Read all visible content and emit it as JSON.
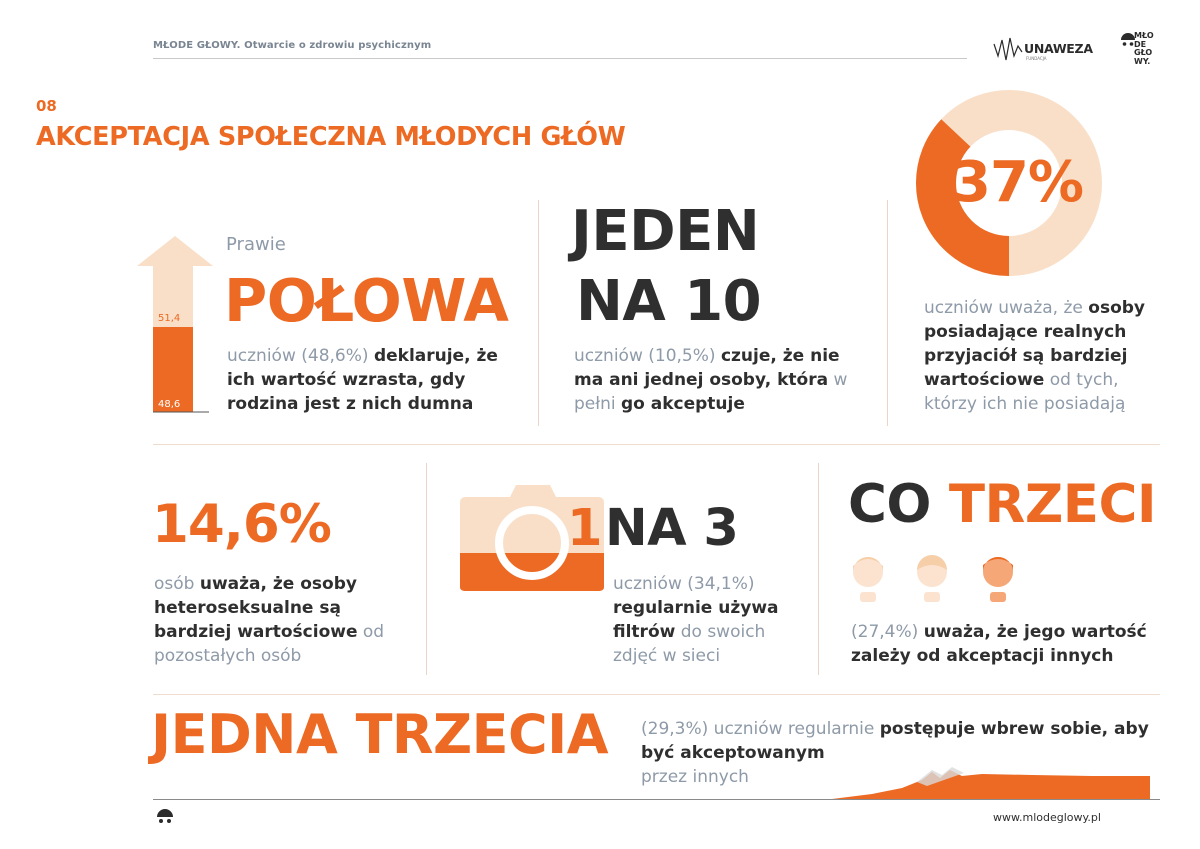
{
  "header": {
    "title": "MŁODE GŁOWY. Otwarcie o zdrowiu psychicznym",
    "unaweza_logo": "UNAWEZA",
    "unaweza_sub": "FUNDACJA",
    "mg_logo_lines": [
      "MŁO",
      "DE",
      "GŁO",
      "WY."
    ]
  },
  "section": {
    "number": "08",
    "title": "AKCEPTACJA SPOŁECZNA MŁODYCH GŁÓW"
  },
  "block1": {
    "pre": "Prawie",
    "headline": "POŁOWA",
    "bar_top_label": "51,4",
    "bar_bottom_label": "48,6",
    "bar_fill_percent": 48.6,
    "t1": "uczniów (48,6%) ",
    "t2": "deklaruje, że ich wartość wzrasta, gdy rodzina jest z nich dumna"
  },
  "block2": {
    "line1": "JEDEN",
    "line2": "NA 10",
    "t1": "uczniów (10,5%) ",
    "t2": "czuje, że nie ma ani jednej osoby, która",
    "t3": " w pełni ",
    "t4": "go akceptuje"
  },
  "block3": {
    "headline": "37%",
    "donut_percent": 37,
    "t1": "uczniów uważa, że ",
    "t2": "osoby posiadające realnych przyjaciół są bardziej wartościowe",
    "t3": " od tych, którzy ich nie posiadają"
  },
  "block4": {
    "headline": "14,6%",
    "t1": "osób ",
    "t2": "uważa, że osoby heteroseksualne są bardziej wartościowe",
    "t3": " od pozostałych osób"
  },
  "block5": {
    "num": "1",
    "rest": "NA 3",
    "t1": "uczniów (34,1%) ",
    "t2": "regularnie używa filtrów",
    "t3": " do swoich zdjęć w sieci"
  },
  "block6": {
    "w1": "CO ",
    "w2": "TRZECI",
    "t1": "(27,4%) ",
    "t2": "uważa, że jego wartość zależy od akceptacji innych"
  },
  "block7": {
    "headline": "JEDNA TRZECIA",
    "t1": "(29,3%) uczniów regularnie ",
    "t2": "postępuje wbrew sobie, aby być akceptowanym",
    "t3": " przez innych"
  },
  "footer": {
    "website": "www.mlodeglowy.pl"
  },
  "colors": {
    "accent": "#ec6a23",
    "accent_light": "#f9dfc7",
    "grey_text": "#8e9aa8",
    "dark_text": "#2f2f2f"
  }
}
